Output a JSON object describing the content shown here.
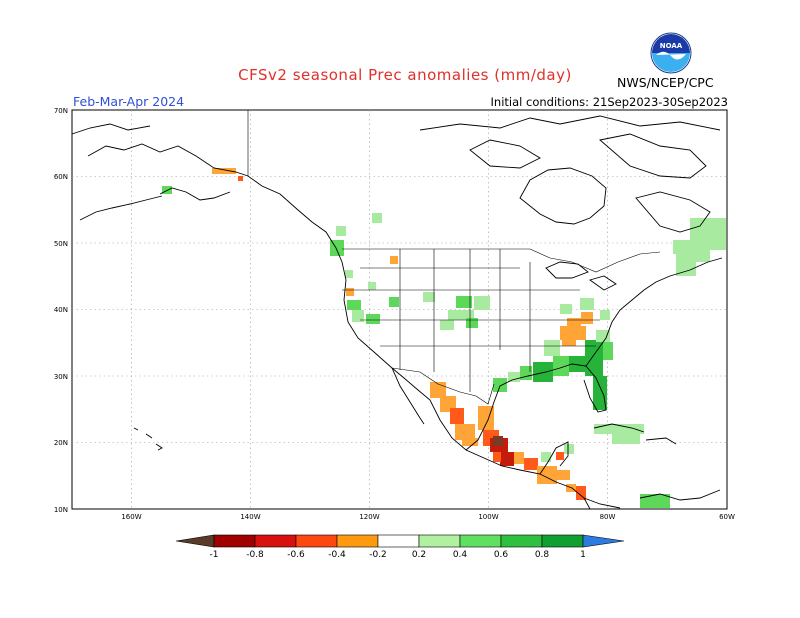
{
  "header": {
    "title": "CFSv2 seasonal Prec anomalies (mm/day)",
    "season": "Feb-Mar-Apr 2024",
    "initial_conditions": "Initial conditions: 21Sep2023-30Sep2023",
    "agency": "NWS/NCEP/CPC",
    "logo_text": "NOAA"
  },
  "map": {
    "lat_labels": [
      "70N",
      "60N",
      "50N",
      "40N",
      "30N",
      "20N",
      "10N"
    ],
    "lon_labels": [
      "160W",
      "140W",
      "120W",
      "100W",
      "80W",
      "60W"
    ],
    "lat_range": [
      10,
      70
    ],
    "lon_range": [
      -170,
      -60
    ]
  },
  "colorbar": {
    "labels": [
      "-1",
      "-0.8",
      "-0.6",
      "-0.4",
      "-0.2",
      "0.2",
      "0.4",
      "0.6",
      "0.8",
      "1"
    ],
    "colors": [
      "#5a3a28",
      "#a00000",
      "#d81010",
      "#ff4810",
      "#ff9a10",
      "#ffffff",
      "#b0f0a0",
      "#60e060",
      "#30c040",
      "#10a030",
      "#209040",
      "#2c7be0"
    ]
  },
  "anomaly_colors": {
    "wet_light": "#a8eba0",
    "wet_mid": "#5ed85a",
    "wet_strong": "#27b33a",
    "dry_light": "#ffa436",
    "dry_mid": "#ff5a1a",
    "dry_strong": "#c41c0a",
    "dry_extreme": "#7a3a24"
  }
}
